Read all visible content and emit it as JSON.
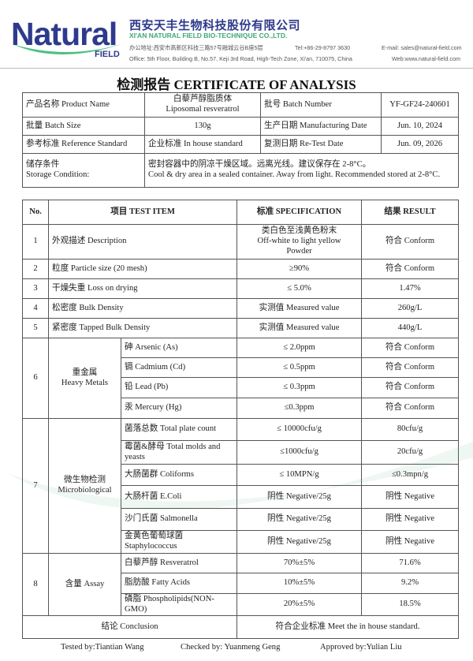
{
  "header": {
    "logo_text": "Natural",
    "logo_sub": "FIELD",
    "company_cn": "西安天丰生物科技股份有限公司",
    "company_en": "XI'AN NATURAL FIELD BIO-TECHNIQUE CO.,LTD.",
    "address_cn": "办公地址:西安市高新区科技三路57号融城云谷B座5层",
    "tel": "Tel:+86-29-8797 3630",
    "email": "E-mail: sales@natural-field.com",
    "address_en": "Office: 5th Floor, Building B, No.57, Keji 3rd Road, High-Tech Zone, Xi'an, 710075, China",
    "web": "Web:www.natural-field.com",
    "brand_color": "#2e3a8c",
    "accent_color": "#3fa874"
  },
  "title": "检测报告 CERTIFICATE OF ANALYSIS",
  "info": {
    "product_name_label": "产品名称 Product Name",
    "product_name_cn": "白藜芦醇脂质体",
    "product_name_en": "Liposomal resveratrol",
    "batch_number_label": "批号 Batch Number",
    "batch_number": "YF-GF24-240601",
    "batch_size_label": "批量 Batch Size",
    "batch_size": "130g",
    "mfg_date_label": "生产日期 Manufacturing Date",
    "mfg_date": "Jun. 10, 2024",
    "ref_std_label": "参考标准 Reference Standard",
    "ref_std": "企业标准 In house standard",
    "retest_label": "复测日期 Re-Test Date",
    "retest_date": "Jun. 09, 2026",
    "storage_label_cn": "储存条件",
    "storage_label_en": "Storage Condition:",
    "storage_cn": "密封容器中的阴凉干燥区域。远离光线。建议保存在 2-8°C。",
    "storage_en": "Cool & dry area in a sealed container.   Away from light. Recommended stored at 2-8°C."
  },
  "table": {
    "headers": [
      "No.",
      "项目 TEST ITEM",
      "标准 SPECIFICATION",
      "结果 RESULT"
    ],
    "simple_rows": [
      {
        "no": "1",
        "item": "外观描述 Description",
        "spec_lines": [
          "类白色至浅黄色粉末",
          "Off-white to light yellow",
          "Powder"
        ],
        "result": "符合 Conform"
      },
      {
        "no": "2",
        "item": "粒度 Particle size (20 mesh)",
        "spec_lines": [
          "≥90%"
        ],
        "result": "符合 Conform"
      },
      {
        "no": "3",
        "item": "干燥失重 Loss on drying",
        "spec_lines": [
          "≤ 5.0%"
        ],
        "result": "1.47%"
      },
      {
        "no": "4",
        "item": "松密度 Bulk Density",
        "spec_lines": [
          "实测值 Measured value"
        ],
        "result": "260g/L"
      },
      {
        "no": "5",
        "item": "紧密度 Tapped Bulk Density",
        "spec_lines": [
          "实测值 Measured value"
        ],
        "result": "440g/L"
      }
    ],
    "groups": [
      {
        "no": "6",
        "name_cn": "重金属",
        "name_en": "Heavy Metals",
        "items": [
          {
            "item": "砷 Arsenic (As)",
            "spec": "≤ 2.0ppm",
            "result": "符合 Conform"
          },
          {
            "item": "镉 Cadmium (Cd)",
            "spec": "≤ 0.5ppm",
            "result": "符合 Conform"
          },
          {
            "item": "铅 Lead (Pb)",
            "spec": "≤ 0.3ppm",
            "result": "符合 Conform"
          },
          {
            "item": "汞 Mercury (Hg)",
            "spec": "≤0.3ppm",
            "result": "符合 Conform"
          }
        ]
      },
      {
        "no": "7",
        "name_cn": "微生物检测",
        "name_en": "Microbiological",
        "items": [
          {
            "item": "菌落总数 Total plate count",
            "spec": "≤ 10000cfu/g",
            "result": "80cfu/g"
          },
          {
            "item": "霉菌&酵母 Total molds and yeasts",
            "spec": "≤1000cfu/g",
            "result": "20cfu/g"
          },
          {
            "item": "大肠菌群 Coliforms",
            "spec": "≤ 10MPN/g",
            "result": "≤0.3mpn/g"
          },
          {
            "item": "大肠杆菌 E.Coli",
            "spec": "阴性 Negative/25g",
            "result": "阴性 Negative"
          },
          {
            "item": "沙门氏菌 Salmonella",
            "spec": "阴性 Negative/25g",
            "result": "阴性 Negative"
          },
          {
            "item": "金黄色葡萄球菌 Staphylococcus",
            "spec": "阴性 Negative/25g",
            "result": "阴性 Negative"
          }
        ]
      },
      {
        "no": "8",
        "name_cn": "含量 Assay",
        "name_en": "",
        "items": [
          {
            "item": "白藜芦醇 Resveratrol",
            "spec": "70%±5%",
            "result": "71.6%"
          },
          {
            "item": "脂肪酸 Fatty Acids",
            "spec": "10%±5%",
            "result": "9.2%"
          },
          {
            "item": "磷脂 Phospholipids(NON-GMO)",
            "spec": "20%±5%",
            "result": "18.5%"
          }
        ]
      }
    ],
    "conclusion_label": "结论 Conclusion",
    "conclusion": "符合企业标准 Meet the in house standard."
  },
  "signatures": {
    "tested": "Tested by:Tiantian Wang",
    "checked": "Checked by: Yuanmeng Geng",
    "approved": "Approved by:Yulian Liu"
  }
}
